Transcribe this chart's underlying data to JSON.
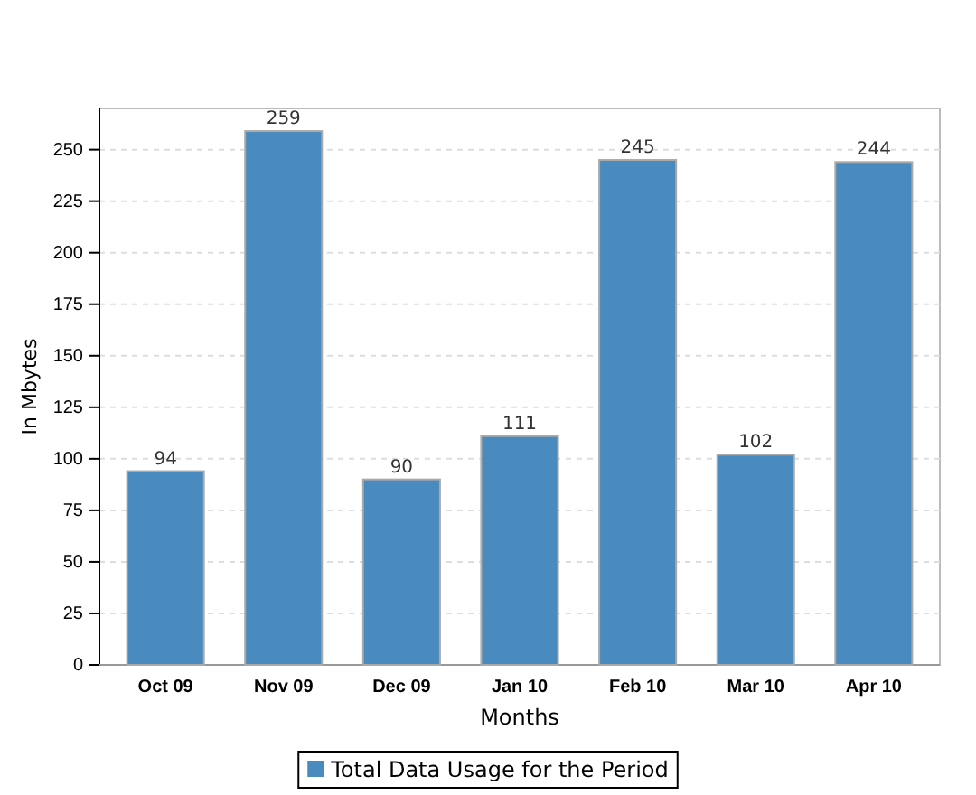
{
  "chart_data": {
    "type": "bar",
    "xlabel": "Months",
    "ylabel": "In Mbytes",
    "categories": [
      "Oct 09",
      "Nov 09",
      "Dec 09",
      "Jan 10",
      "Feb 10",
      "Mar 10",
      "Apr 10"
    ],
    "series": [
      {
        "name": "Total Data Usage for the Period",
        "color": "#4a8bbf",
        "values": [
          94,
          259,
          90,
          111,
          245,
          102,
          244
        ]
      }
    ],
    "ylim": [
      0,
      270
    ],
    "yticks": [
      0,
      25,
      50,
      75,
      100,
      125,
      150,
      175,
      200,
      225,
      250
    ],
    "grid": "y",
    "data_labels": true,
    "legend": "bottom"
  }
}
